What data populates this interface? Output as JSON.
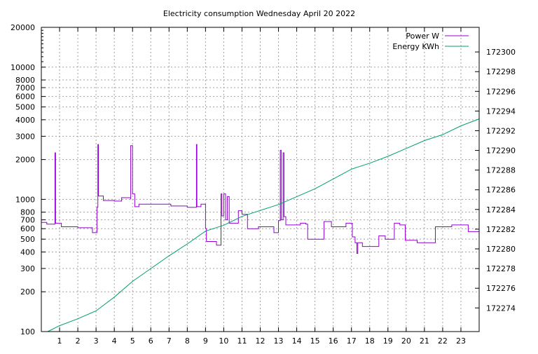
{
  "chart_data": {
    "type": "line",
    "title": "Electricity consumption Wednesday April 20 2022",
    "xlabel": "",
    "ylabel": "",
    "y2label": "",
    "grid": true,
    "legend_position": "top-right",
    "x_axis": {
      "range": [
        0,
        24
      ],
      "ticks": [
        1,
        2,
        3,
        4,
        5,
        6,
        7,
        8,
        9,
        10,
        11,
        12,
        13,
        14,
        15,
        16,
        17,
        18,
        19,
        20,
        21,
        22,
        23
      ]
    },
    "y_axis_left": {
      "scale": "log",
      "range": [
        100,
        20000
      ],
      "ticks": [
        100,
        200,
        300,
        400,
        500,
        600,
        700,
        800,
        1000,
        2000,
        3000,
        4000,
        5000,
        6000,
        7000,
        8000,
        10000,
        20000
      ]
    },
    "y_axis_right": {
      "scale": "linear",
      "range": [
        172271.6,
        172302.5
      ],
      "ticks": [
        172274,
        172276,
        172278,
        172280,
        172282,
        172284,
        172286,
        172288,
        172290,
        172292,
        172294,
        172296,
        172298,
        172300
      ]
    },
    "series": [
      {
        "name": "Power W",
        "axis": "left",
        "color": "#9400d3",
        "style": "steps",
        "points": [
          [
            0,
            670
          ],
          [
            0.3,
            650
          ],
          [
            0.75,
            650
          ],
          [
            0.75,
            2250
          ],
          [
            0.78,
            2250
          ],
          [
            0.78,
            660
          ],
          [
            1.1,
            620
          ],
          [
            2.0,
            610
          ],
          [
            2.8,
            610
          ],
          [
            2.8,
            560
          ],
          [
            3.05,
            560
          ],
          [
            3.05,
            870
          ],
          [
            3.1,
            870
          ],
          [
            3.1,
            2600
          ],
          [
            3.13,
            2600
          ],
          [
            3.13,
            1060
          ],
          [
            3.4,
            980
          ],
          [
            4.0,
            970
          ],
          [
            4.4,
            1030
          ],
          [
            4.9,
            1000
          ],
          [
            4.9,
            2550
          ],
          [
            5.0,
            2550
          ],
          [
            5.0,
            1100
          ],
          [
            5.12,
            880
          ],
          [
            5.35,
            920
          ],
          [
            6.0,
            920
          ],
          [
            7.0,
            920
          ],
          [
            7.1,
            890
          ],
          [
            7.9,
            890
          ],
          [
            8.0,
            870
          ],
          [
            8.5,
            870
          ],
          [
            8.5,
            2600
          ],
          [
            8.53,
            2600
          ],
          [
            8.53,
            880
          ],
          [
            8.75,
            920
          ],
          [
            9.0,
            920
          ],
          [
            9.0,
            600
          ],
          [
            9.05,
            480
          ],
          [
            9.6,
            450
          ],
          [
            9.85,
            450
          ],
          [
            9.85,
            1100
          ],
          [
            9.9,
            1100
          ],
          [
            9.9,
            750
          ],
          [
            10.0,
            1100
          ],
          [
            10.1,
            700
          ],
          [
            10.2,
            1050
          ],
          [
            10.3,
            660
          ],
          [
            10.8,
            820
          ],
          [
            11.0,
            770
          ],
          [
            11.3,
            600
          ],
          [
            11.9,
            620
          ],
          [
            12.7,
            620
          ],
          [
            12.75,
            560
          ],
          [
            13.0,
            690
          ],
          [
            13.1,
            2350
          ],
          [
            13.15,
            700
          ],
          [
            13.25,
            2250
          ],
          [
            13.3,
            740
          ],
          [
            13.4,
            640
          ],
          [
            14.0,
            640
          ],
          [
            14.2,
            660
          ],
          [
            14.5,
            650
          ],
          [
            14.6,
            500
          ],
          [
            15.0,
            500
          ],
          [
            15.5,
            500
          ],
          [
            15.5,
            680
          ],
          [
            15.9,
            620
          ],
          [
            16.6,
            620
          ],
          [
            16.7,
            660
          ],
          [
            17.0,
            660
          ],
          [
            17.05,
            520
          ],
          [
            17.2,
            470
          ],
          [
            17.3,
            390
          ],
          [
            17.35,
            470
          ],
          [
            17.6,
            440
          ],
          [
            18.0,
            440
          ],
          [
            18.5,
            440
          ],
          [
            18.5,
            530
          ],
          [
            18.85,
            500
          ],
          [
            19.35,
            500
          ],
          [
            19.35,
            660
          ],
          [
            19.65,
            640
          ],
          [
            19.95,
            640
          ],
          [
            19.95,
            490
          ],
          [
            20.5,
            490
          ],
          [
            20.6,
            470
          ],
          [
            21.6,
            470
          ],
          [
            21.6,
            620
          ],
          [
            22.0,
            620
          ],
          [
            22.5,
            640
          ],
          [
            23.3,
            640
          ],
          [
            23.4,
            570
          ],
          [
            24.0,
            580
          ]
        ]
      },
      {
        "name": "Energy KWh",
        "axis": "right",
        "color": "#009e73",
        "style": "line",
        "points": [
          [
            0.35,
            172271.6
          ],
          [
            1.0,
            172272.2
          ],
          [
            2.0,
            172272.9
          ],
          [
            3.0,
            172273.7
          ],
          [
            4.0,
            172275.1
          ],
          [
            5.0,
            172276.7
          ],
          [
            6.0,
            172278.0
          ],
          [
            7.0,
            172279.3
          ],
          [
            8.0,
            172280.5
          ],
          [
            9.0,
            172281.8
          ],
          [
            10.0,
            172282.4
          ],
          [
            11.0,
            172283.3
          ],
          [
            12.0,
            172283.9
          ],
          [
            13.0,
            172284.5
          ],
          [
            14.0,
            172285.3
          ],
          [
            15.0,
            172286.1
          ],
          [
            16.0,
            172287.1
          ],
          [
            17.0,
            172288.1
          ],
          [
            18.0,
            172288.7
          ],
          [
            19.0,
            172289.4
          ],
          [
            20.0,
            172290.2
          ],
          [
            21.0,
            172291.0
          ],
          [
            22.0,
            172291.6
          ],
          [
            23.0,
            172292.5
          ],
          [
            24.0,
            172293.2
          ]
        ]
      }
    ]
  }
}
